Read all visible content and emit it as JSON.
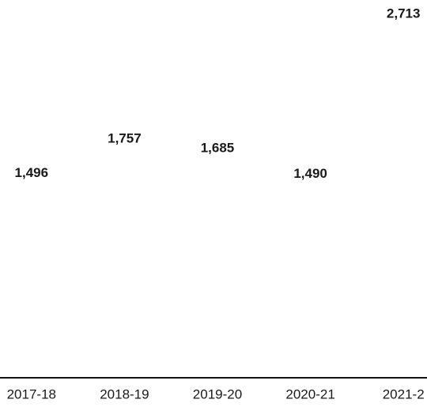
{
  "chart_data": {
    "type": "bar",
    "categories": [
      "2017-18",
      "2018-19",
      "2019-20",
      "2020-21",
      "2021-2"
    ],
    "values": [
      1496,
      1757,
      1685,
      1490,
      2713
    ],
    "value_labels": [
      "1,496",
      "1,757",
      "1,685",
      "1,490",
      "2,713"
    ],
    "color": "#ffffff",
    "ylim": [
      0,
      2800
    ]
  }
}
